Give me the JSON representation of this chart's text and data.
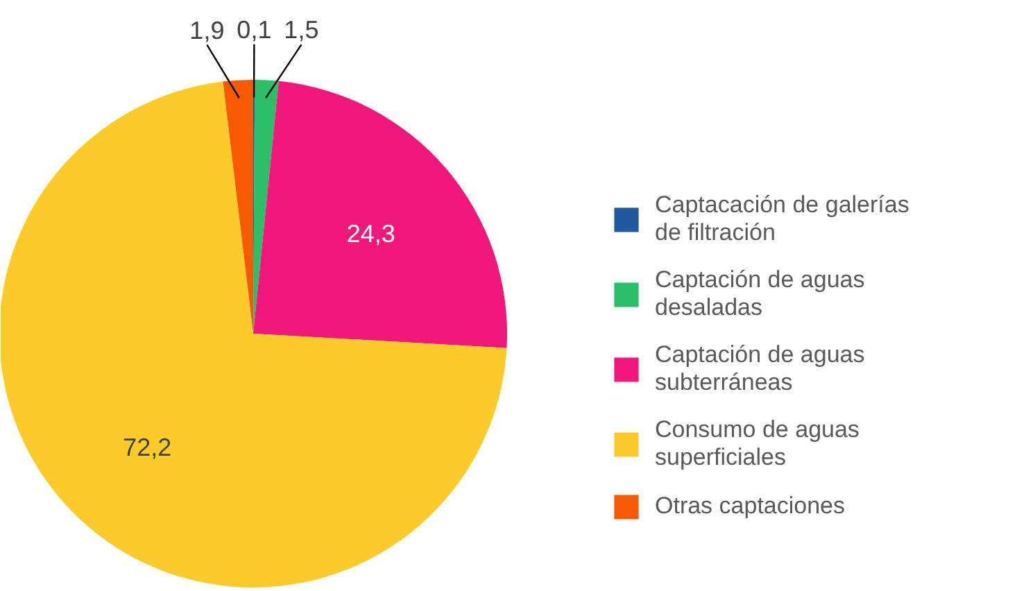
{
  "chart_data": {
    "type": "pie",
    "categories": [
      "Captacación de galerías de filtración",
      "Captación de aguas desaladas",
      "Captación de aguas subterráneas",
      "Consumo de aguas superficiales",
      "Otras captaciones"
    ],
    "values": [
      0.1,
      1.5,
      24.3,
      72.2,
      1.9
    ],
    "colors": [
      "#1f5a9e",
      "#2bbf68",
      "#f0187a",
      "#fbcb2a",
      "#f55a00"
    ],
    "value_labels": [
      "0,1",
      "1,5",
      "24,3",
      "72,2",
      "1,9"
    ],
    "legend": "right"
  }
}
